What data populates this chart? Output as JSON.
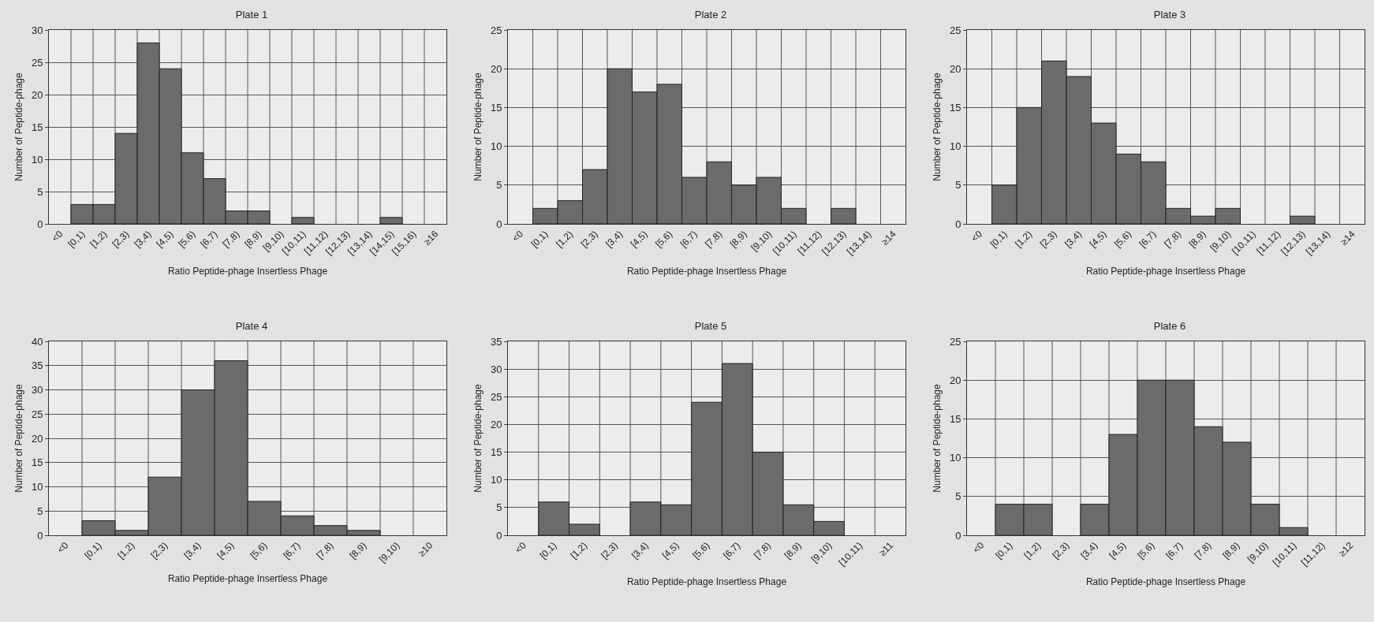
{
  "chart_data": [
    {
      "type": "bar",
      "title": "Plate 1",
      "xlabel": "Ratio Peptide-phage Insertless Phage",
      "ylabel": "Number of Peptide-phage",
      "categories": [
        "<0",
        "[0,1)",
        "[1,2)",
        "[2,3)",
        "[3,4)",
        "[4,5)",
        "[5,6)",
        "[6,7)",
        "[7,8)",
        "[8,9)",
        "[9,10)",
        "[10,11)",
        "[11,12)",
        "[12,13)",
        "[13,14)",
        "[14,15)",
        "[15,16)",
        "≥16"
      ],
      "values": [
        0,
        3,
        3,
        14,
        28,
        24,
        11,
        7,
        2,
        2,
        0,
        1,
        0,
        0,
        0,
        1,
        0,
        0
      ],
      "color": "#6b6b6b",
      "ylim": [
        0,
        30
      ],
      "yticks": [
        0,
        5,
        10,
        15,
        20,
        25,
        30
      ],
      "grid": true
    },
    {
      "type": "bar",
      "title": "Plate 2",
      "xlabel": "Ratio Peptide-phage Insertless Phage",
      "ylabel": "Number of Peptide-phage",
      "categories": [
        "<0",
        "[0,1)",
        "[1,2)",
        "[2,3)",
        "[3,4)",
        "[4,5)",
        "[5,6)",
        "[6,7)",
        "[7,8)",
        "[8,9)",
        "[9,10)",
        "[10,11)",
        "[11,12)",
        "[12,13)",
        "[13,14)",
        "≥14"
      ],
      "values": [
        0,
        2,
        3,
        7,
        20,
        17,
        18,
        6,
        8,
        5,
        6,
        2,
        0,
        2,
        0,
        0
      ],
      "color": "#6b6b6b",
      "ylim": [
        0,
        25
      ],
      "yticks": [
        0,
        5,
        10,
        15,
        20,
        25
      ],
      "grid": true
    },
    {
      "type": "bar",
      "title": "Plate 3",
      "xlabel": "Ratio Peptide-phage Insertless Phage",
      "ylabel": "Number of Peptide-phage",
      "categories": [
        "<0",
        "[0,1)",
        "[1,2)",
        "[2,3)",
        "[3,4)",
        "[4,5)",
        "[5,6)",
        "[6,7)",
        "[7,8)",
        "[8,9)",
        "[9,10)",
        "[10,11)",
        "[11,12)",
        "[12,13)",
        "[13,14)",
        "≥14"
      ],
      "values": [
        0,
        5,
        15,
        21,
        19,
        13,
        9,
        8,
        2,
        1,
        2,
        0,
        0,
        1,
        0,
        0
      ],
      "color": "#6b6b6b",
      "ylim": [
        0,
        25
      ],
      "yticks": [
        0,
        5,
        10,
        15,
        20,
        25
      ],
      "grid": true
    },
    {
      "type": "bar",
      "title": "Plate 4",
      "xlabel": "Ratio Peptide-phage Insertless Phage",
      "ylabel": "Number of Peptide-phage",
      "categories": [
        "<0",
        "[0,1)",
        "[1,2)",
        "[2,3)",
        "[3,4)",
        "[4,5)",
        "[5,6)",
        "[6,7)",
        "[7,8)",
        "[8,9)",
        "[9,10)",
        "≥10"
      ],
      "values": [
        0,
        3,
        1,
        12,
        30,
        36,
        7,
        4,
        2,
        1,
        0,
        0
      ],
      "color": "#6b6b6b",
      "ylim": [
        0,
        40
      ],
      "yticks": [
        0,
        5,
        10,
        15,
        20,
        25,
        30,
        35,
        40
      ],
      "grid": true
    },
    {
      "type": "bar",
      "title": "Plate 5",
      "xlabel": "Ratio Peptide-phage Insertless Phage",
      "ylabel": "Number of Peptide-phage",
      "categories": [
        "<0",
        "[0,1)",
        "[1,2)",
        "[2,3)",
        "[3,4)",
        "[4,5)",
        "[5,6)",
        "[6,7)",
        "[7,8)",
        "[8,9)",
        "[9,10)",
        "[10,11)",
        "≥11"
      ],
      "values": [
        0,
        6,
        2,
        0,
        6,
        5.5,
        24,
        31,
        15,
        5.5,
        2.5,
        0,
        0
      ],
      "color": "#6b6b6b",
      "ylim": [
        0,
        35
      ],
      "yticks": [
        0,
        5,
        10,
        15,
        20,
        25,
        30,
        35
      ],
      "grid": true
    },
    {
      "type": "bar",
      "title": "Plate 6",
      "xlabel": "Ratio Peptide-phage Insertless Phage",
      "ylabel": "Number of Peptide-phage",
      "categories": [
        "<0",
        "[0,1)",
        "[1,2)",
        "[2,3)",
        "[3,4)",
        "[4,5)",
        "[5,6)",
        "[6,7)",
        "[7,8)",
        "[8,9)",
        "[9,10)",
        "[10,11)",
        "[11,12)",
        "≥12"
      ],
      "values": [
        0,
        4,
        4,
        0,
        4,
        13,
        20,
        20,
        14,
        12,
        4,
        1,
        0,
        0
      ],
      "color": "#6b6b6b",
      "ylim": [
        0,
        25
      ],
      "yticks": [
        0,
        5,
        10,
        15,
        20,
        25
      ],
      "grid": true
    }
  ]
}
